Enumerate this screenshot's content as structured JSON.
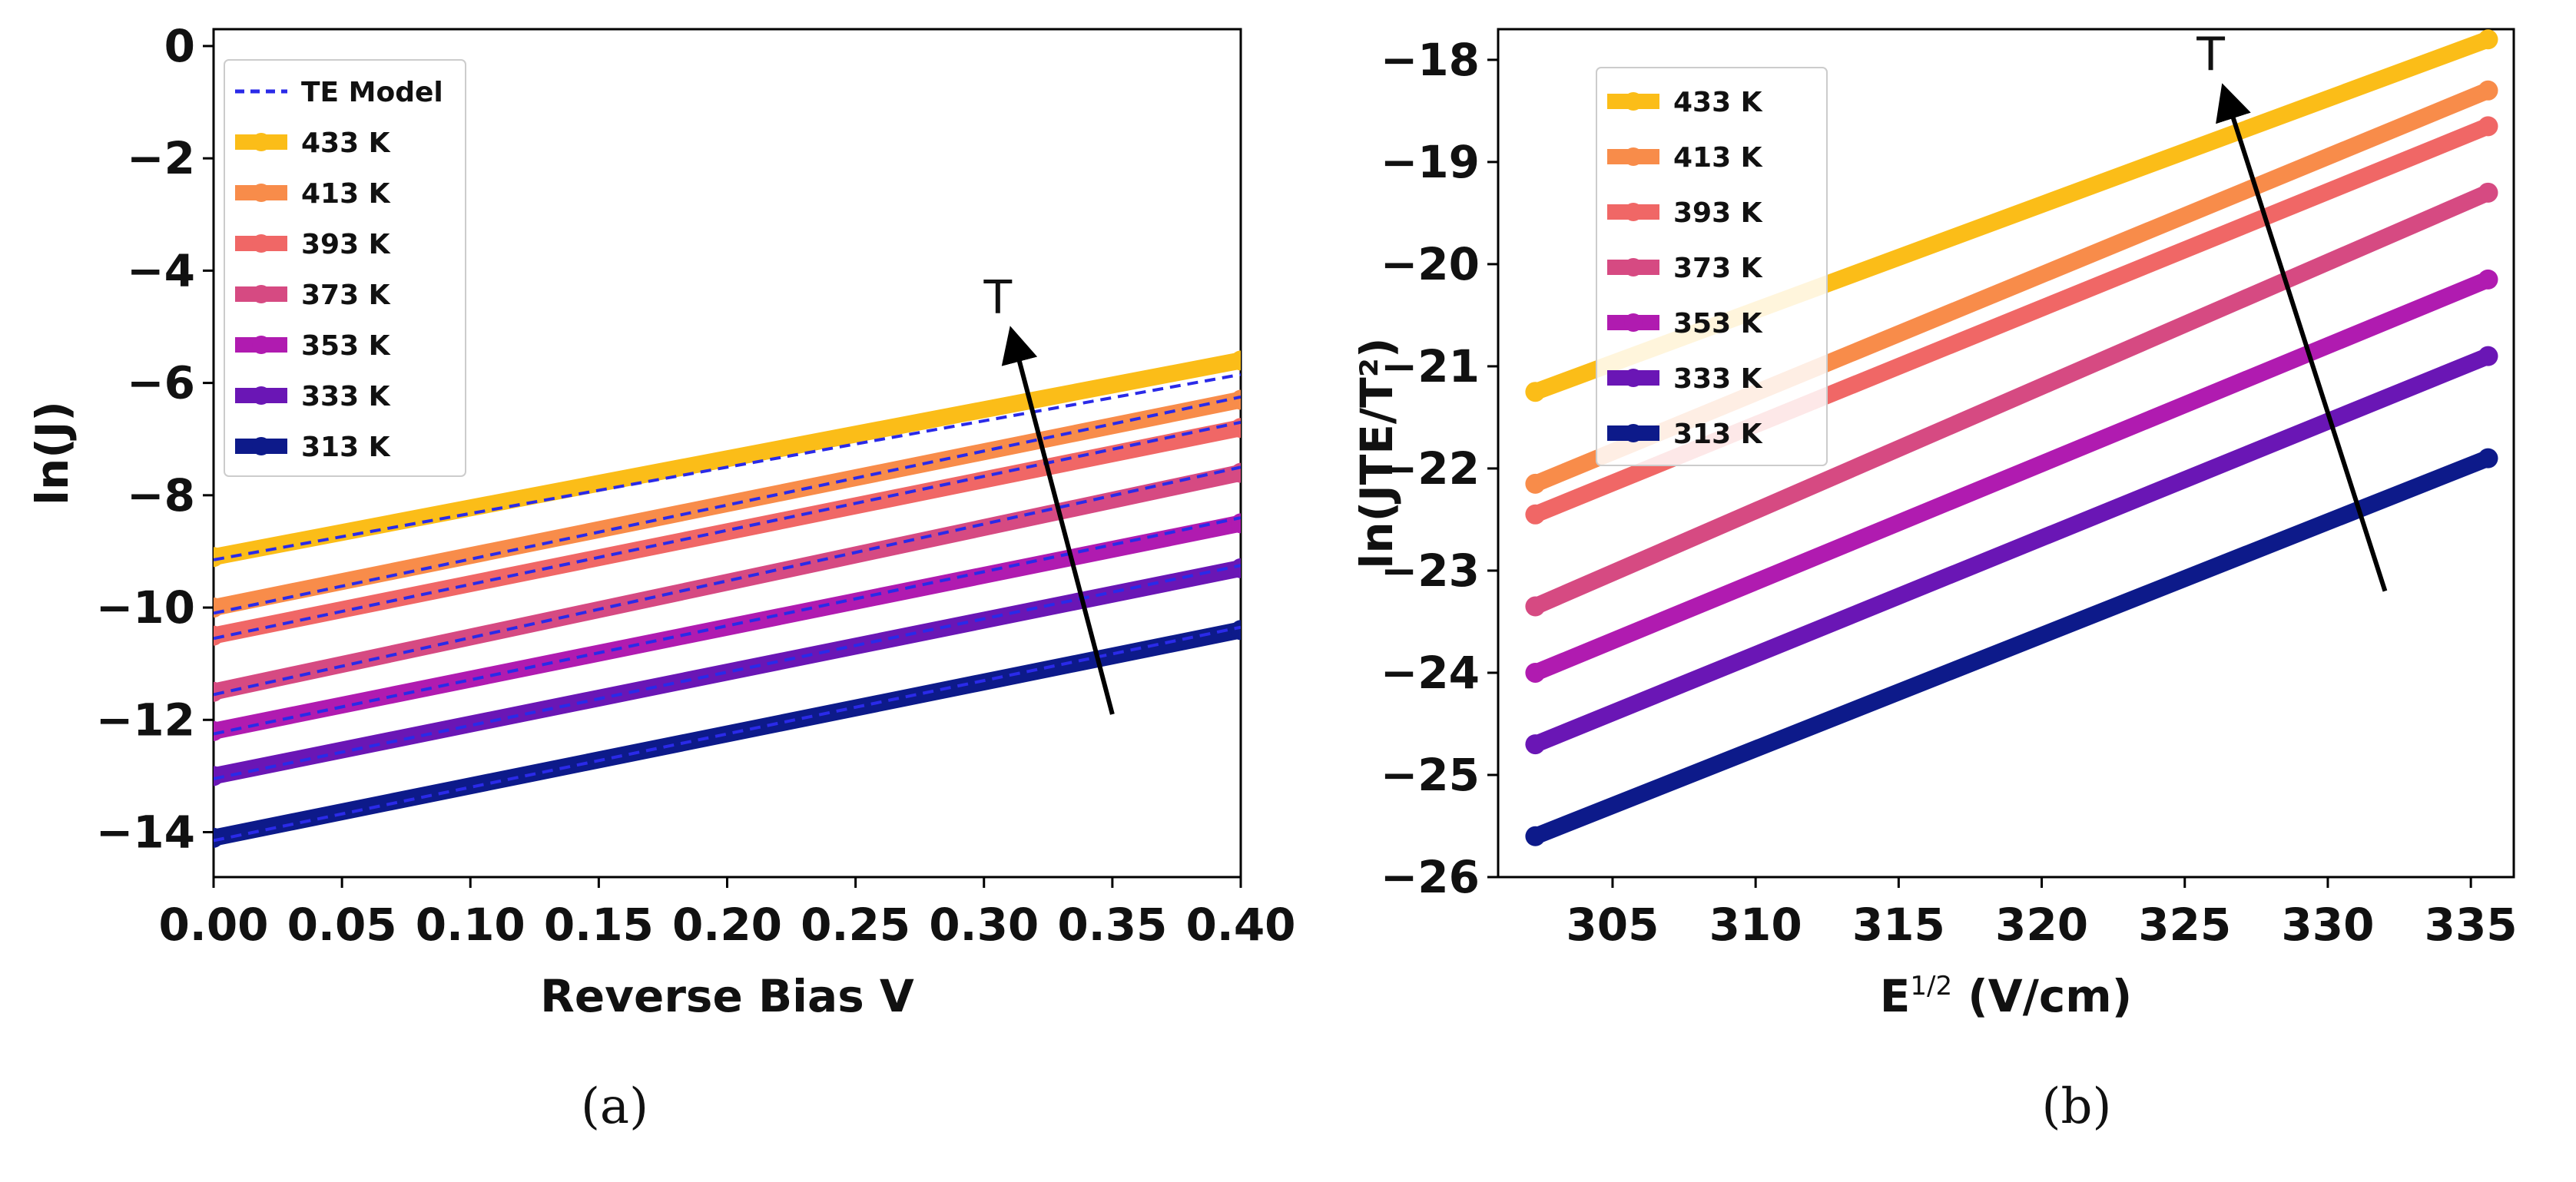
{
  "chart_data": [
    {
      "id": "a",
      "panel_label": "(a)",
      "type": "line",
      "title": "",
      "xlabel": "Reverse Bias V",
      "ylabel": "ln(J)",
      "xlim": [
        0.0,
        0.4
      ],
      "ylim": [
        -14.8,
        0.3
      ],
      "xticks": [
        0.0,
        0.05,
        0.1,
        0.15,
        0.2,
        0.25,
        0.3,
        0.35,
        0.4
      ],
      "xtick_labels": [
        "0.00",
        "0.05",
        "0.10",
        "0.15",
        "0.20",
        "0.25",
        "0.30",
        "0.35",
        "0.40"
      ],
      "yticks": [
        0,
        -2,
        -4,
        -6,
        -8,
        -10,
        -12,
        -14
      ],
      "ytick_labels": [
        "0",
        "−2",
        "−4",
        "−6",
        "−8",
        "−10",
        "−12",
        "−14"
      ],
      "legend_position": "top-left",
      "legend_model_label": "TE Model",
      "model_color": "#2a2ae8",
      "annotation": "T",
      "arrow": {
        "from": [
          0.35,
          -11.9
        ],
        "to": [
          0.312,
          -5.3
        ]
      },
      "series": [
        {
          "name": "433 K",
          "color": "#fbbd18",
          "x": [
            0.0,
            0.4
          ],
          "y": [
            -9.1,
            -5.6
          ],
          "model_y": [
            -9.15,
            -5.85
          ]
        },
        {
          "name": "413 K",
          "color": "#f88c4a",
          "x": [
            0.0,
            0.4
          ],
          "y": [
            -10.0,
            -6.3
          ],
          "model_y": [
            -10.1,
            -6.25
          ]
        },
        {
          "name": "393 K",
          "color": "#f06766",
          "x": [
            0.0,
            0.4
          ],
          "y": [
            -10.5,
            -6.8
          ],
          "model_y": [
            -10.55,
            -6.7
          ]
        },
        {
          "name": "373 K",
          "color": "#d64a82",
          "x": [
            0.0,
            0.4
          ],
          "y": [
            -11.5,
            -7.6
          ],
          "model_y": [
            -11.55,
            -7.5
          ]
        },
        {
          "name": "353 K",
          "color": "#b01bb0",
          "x": [
            0.0,
            0.4
          ],
          "y": [
            -12.2,
            -8.5
          ],
          "model_y": [
            -12.25,
            -8.4
          ]
        },
        {
          "name": "333 K",
          "color": "#6a16b5",
          "x": [
            0.0,
            0.4
          ],
          "y": [
            -13.0,
            -9.3
          ],
          "model_y": [
            -13.05,
            -9.25
          ]
        },
        {
          "name": "313 K",
          "color": "#0d1a8a",
          "x": [
            0.0,
            0.4
          ],
          "y": [
            -14.1,
            -10.4
          ],
          "model_y": [
            -14.15,
            -10.35
          ]
        }
      ]
    },
    {
      "id": "b",
      "panel_label": "(b)",
      "type": "line",
      "title": "",
      "xlabel_main": "E",
      "xlabel_sup": "1/2",
      "xlabel_rest": " (V/cm)",
      "ylabel": "ln(JTE/T²)",
      "xlim": [
        301.0,
        336.5
      ],
      "ylim": [
        -26.0,
        -17.7
      ],
      "xticks": [
        305,
        310,
        315,
        320,
        325,
        330,
        335
      ],
      "xtick_labels": [
        "305",
        "310",
        "315",
        "320",
        "325",
        "330",
        "335"
      ],
      "yticks": [
        -18,
        -19,
        -20,
        -21,
        -22,
        -23,
        -24,
        -25,
        -26
      ],
      "ytick_labels": [
        "−18",
        "−19",
        "−20",
        "−21",
        "−22",
        "−23",
        "−24",
        "−25",
        "−26"
      ],
      "legend_position": "top-left",
      "annotation": "T",
      "arrow": {
        "from": [
          332.0,
          -23.2
        ],
        "to": [
          326.5,
          -18.4
        ]
      },
      "series": [
        {
          "name": "433 K",
          "color": "#fbbd18",
          "x": [
            302.3,
            335.6
          ],
          "y": [
            -21.25,
            -17.8
          ]
        },
        {
          "name": "413 K",
          "color": "#f88c4a",
          "x": [
            302.3,
            335.6
          ],
          "y": [
            -22.15,
            -18.3
          ]
        },
        {
          "name": "393 K",
          "color": "#f06766",
          "x": [
            302.3,
            335.6
          ],
          "y": [
            -22.45,
            -18.65
          ]
        },
        {
          "name": "373 K",
          "color": "#d64a82",
          "x": [
            302.3,
            335.6
          ],
          "y": [
            -23.35,
            -19.3
          ]
        },
        {
          "name": "353 K",
          "color": "#b01bb0",
          "x": [
            302.3,
            335.6
          ],
          "y": [
            -24.0,
            -20.15
          ]
        },
        {
          "name": "333 K",
          "color": "#6a16b5",
          "x": [
            302.3,
            335.6
          ],
          "y": [
            -24.7,
            -20.9
          ]
        },
        {
          "name": "313 K",
          "color": "#0d1a8a",
          "x": [
            302.3,
            335.6
          ],
          "y": [
            -25.6,
            -21.9
          ]
        }
      ]
    }
  ]
}
